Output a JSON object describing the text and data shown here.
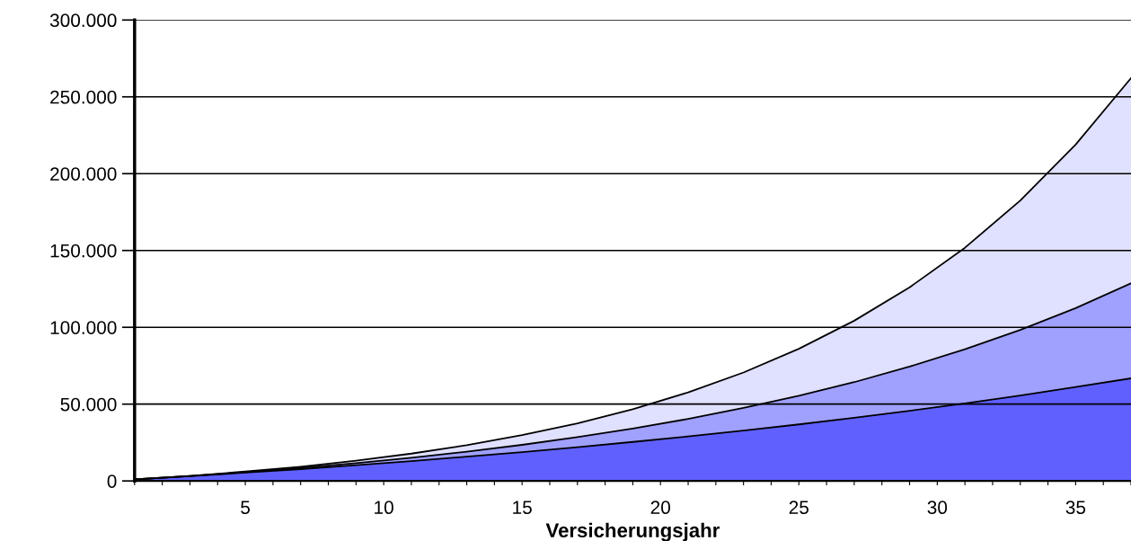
{
  "chart_data": {
    "type": "area",
    "xlabel": "Versicherungsjahr",
    "x": [
      1,
      3,
      5,
      7,
      9,
      11,
      13,
      15,
      17,
      19,
      21,
      23,
      25,
      27,
      29,
      31,
      33,
      35,
      37
    ],
    "series": [
      {
        "color": "#e0e0ff",
        "values": [
          1000,
          3300,
          6100,
          9300,
          13200,
          17800,
          23300,
          29800,
          37500,
          46700,
          57600,
          70600,
          86000,
          104300,
          126000,
          151800,
          182500,
          218900,
          262200
        ]
      },
      {
        "color": "#a0a0ff",
        "values": [
          1000,
          3200,
          5700,
          8500,
          11600,
          15100,
          19100,
          23500,
          28500,
          34100,
          40400,
          47500,
          55400,
          64300,
          74400,
          85700,
          98300,
          112500,
          128600
        ]
      },
      {
        "color": "#6060ff",
        "values": [
          1000,
          3100,
          5400,
          7700,
          10300,
          12900,
          15800,
          18800,
          22000,
          25400,
          29000,
          32800,
          36800,
          41100,
          45700,
          50500,
          55600,
          61100,
          66800
        ]
      }
    ],
    "xlim": [
      1,
      37
    ],
    "xticks": [
      {
        "value": 1,
        "label": null
      },
      {
        "value": 2,
        "label": null
      },
      {
        "value": 3,
        "label": null
      },
      {
        "value": 4,
        "label": null
      },
      5,
      {
        "value": 6,
        "label": null
      },
      {
        "value": 7,
        "label": null
      },
      {
        "value": 8,
        "label": null
      },
      {
        "value": 9,
        "label": null
      },
      10,
      {
        "value": 11,
        "label": null
      },
      {
        "value": 12,
        "label": null
      },
      {
        "value": 13,
        "label": null
      },
      {
        "value": 14,
        "label": null
      },
      15,
      {
        "value": 16,
        "label": null
      },
      {
        "value": 17,
        "label": null
      },
      {
        "value": 18,
        "label": null
      },
      {
        "value": 19,
        "label": null
      },
      20,
      {
        "value": 21,
        "label": null
      },
      {
        "value": 22,
        "label": null
      },
      {
        "value": 23,
        "label": null
      },
      {
        "value": 24,
        "label": null
      },
      25,
      {
        "value": 26,
        "label": null
      },
      {
        "value": 27,
        "label": null
      },
      {
        "value": 28,
        "label": null
      },
      {
        "value": 29,
        "label": null
      },
      30,
      {
        "value": 31,
        "label": null
      },
      {
        "value": 32,
        "label": null
      },
      {
        "value": 33,
        "label": null
      },
      {
        "value": 34,
        "label": null
      },
      35,
      {
        "value": 36,
        "label": null
      },
      {
        "value": 37,
        "label": null
      }
    ],
    "ylim": [
      0,
      300000
    ],
    "yticks": [
      {
        "value": 0,
        "label": "0"
      },
      {
        "value": 50000,
        "label": "50.000"
      },
      {
        "value": 100000,
        "label": "100.000"
      },
      {
        "value": 150000,
        "label": "150.000"
      },
      {
        "value": 200000,
        "label": "200.000"
      },
      {
        "value": 250000,
        "label": "250.000"
      },
      {
        "value": 300000,
        "label": "300.000"
      }
    ],
    "grid": "y"
  }
}
